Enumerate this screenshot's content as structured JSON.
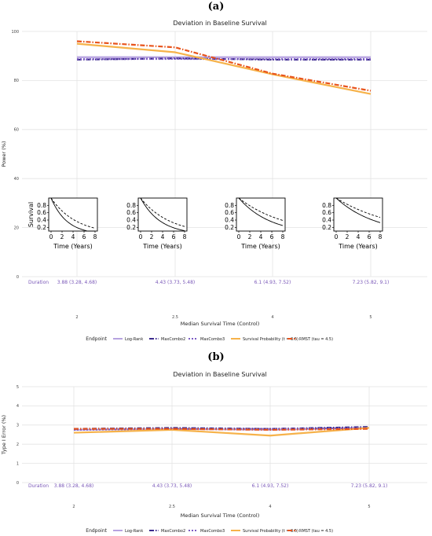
{
  "panels": [
    "(a)",
    "(b)"
  ],
  "chart_data": [
    {
      "type": "line",
      "title": "Deviation in Baseline Survival",
      "xlabel": "Median Survival Time (Control)",
      "ylabel": "Power (%)",
      "x": [
        2,
        2.5,
        4,
        5
      ],
      "x_tick_labels": [
        "2",
        "2.5",
        "4",
        "5"
      ],
      "ylim": [
        0,
        100
      ],
      "y_ticks": [
        0,
        20,
        40,
        60,
        80,
        100
      ],
      "grid": true,
      "duration_label": "Duration",
      "durations": [
        "3.88 (3.28, 4.68)",
        "4.43 (3.73, 5.48)",
        "6.1 (4.93, 7.52)",
        "7.23 (5.82, 9.1)"
      ],
      "legend_title": "Endpoint",
      "legend_position": "bottom",
      "series": [
        {
          "name": "Log-Rank",
          "color": "#b7a3e0",
          "dash": "",
          "values": [
            89.5,
            89.5,
            89.5,
            89.5
          ]
        },
        {
          "name": "MaxCombo2",
          "color": "#3b2a8c",
          "dash": "6 2 1.5 2",
          "values": [
            88.5,
            89,
            88.5,
            88.5
          ]
        },
        {
          "name": "MaxCombo3",
          "color": "#7c5cc4",
          "dash": "2 2",
          "values": [
            88.7,
            88.8,
            88.7,
            88.7
          ]
        },
        {
          "name": "Survival Probability (t = 3.5)",
          "color": "#f6b24a",
          "dash": "",
          "values": [
            95,
            91.5,
            82.5,
            74.5
          ]
        },
        {
          "name": "RMST (tau = 4.5)",
          "color": "#e8541c",
          "dash": "6 2 1.5 2",
          "values": [
            96,
            93.5,
            82.8,
            75.8
          ]
        }
      ],
      "insets": {
        "ylabel": "Survival",
        "xlabel": "Time (Years)",
        "x_ticks": [
          "0",
          "2",
          "4",
          "6",
          "8"
        ],
        "y_ticks": [
          "0.2",
          "0.4",
          "0.6",
          "0.8"
        ],
        "median_control": [
          2,
          2.5,
          4,
          5
        ],
        "median_treatment": [
          3.2,
          3.7,
          5.9,
          7.4
        ]
      }
    },
    {
      "type": "line",
      "title": "Deviation in Baseline Survival",
      "xlabel": "Median Survival Time (Control)",
      "ylabel": "Type I Error (%)",
      "x": [
        2,
        2.5,
        4,
        5
      ],
      "x_tick_labels": [
        "2",
        "2.5",
        "4",
        "5"
      ],
      "ylim": [
        0,
        5
      ],
      "y_ticks": [
        0,
        1,
        2,
        3,
        4,
        5
      ],
      "grid": true,
      "duration_label": "Duration",
      "durations": [
        "3.88 (3.28, 4.68)",
        "4.43 (3.73, 5.48)",
        "6.1 (4.93, 7.52)",
        "7.23 (5.82, 9.1)"
      ],
      "legend_title": "Endpoint",
      "legend_position": "bottom",
      "series": [
        {
          "name": "Log-Rank",
          "color": "#b7a3e0",
          "dash": "",
          "values": [
            2.75,
            2.8,
            2.75,
            2.85
          ]
        },
        {
          "name": "MaxCombo2",
          "color": "#3b2a8c",
          "dash": "6 2 1.5 2",
          "values": [
            2.8,
            2.85,
            2.8,
            2.9
          ]
        },
        {
          "name": "MaxCombo3",
          "color": "#7c5cc4",
          "dash": "2 2",
          "values": [
            2.75,
            2.8,
            2.8,
            2.85
          ]
        },
        {
          "name": "Survival Probability (t = 3.5)",
          "color": "#f6b24a",
          "dash": "",
          "values": [
            2.6,
            2.75,
            2.45,
            2.85
          ]
        },
        {
          "name": "RMST (tau = 4.5)",
          "color": "#e8541c",
          "dash": "6 2 1.5 2",
          "values": [
            2.8,
            2.8,
            2.75,
            2.8
          ]
        }
      ]
    }
  ]
}
